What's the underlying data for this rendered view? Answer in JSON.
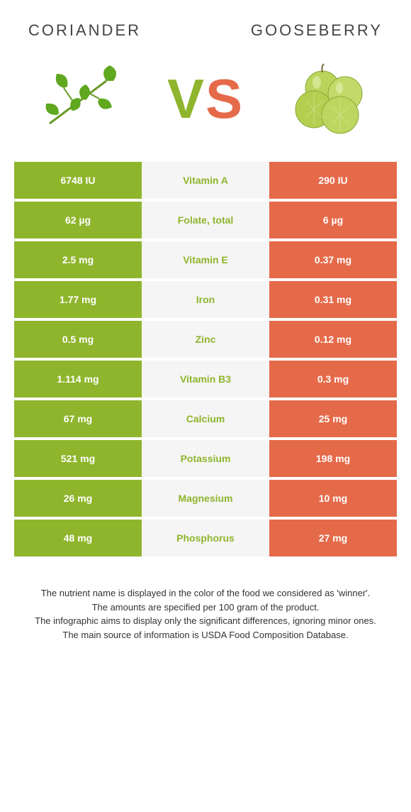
{
  "header": {
    "left_title": "CORIANDER",
    "right_title": "GOOSEBERRY"
  },
  "vs": {
    "v": "V",
    "s": "S"
  },
  "colors": {
    "left_bg": "#8fb52c",
    "right_bg": "#e56a4a",
    "mid_bg": "#f5f5f5",
    "left_text": "#ffffff",
    "right_text": "#ffffff",
    "winner_left": "#8fb52c",
    "winner_right": "#e56a4a"
  },
  "table": {
    "rows": [
      {
        "left": "6748 IU",
        "label": "Vitamin A",
        "right": "290 IU",
        "winner": "left"
      },
      {
        "left": "62 µg",
        "label": "Folate, total",
        "right": "6 µg",
        "winner": "left"
      },
      {
        "left": "2.5 mg",
        "label": "Vitamin E",
        "right": "0.37 mg",
        "winner": "left"
      },
      {
        "left": "1.77 mg",
        "label": "Iron",
        "right": "0.31 mg",
        "winner": "left"
      },
      {
        "left": "0.5 mg",
        "label": "Zinc",
        "right": "0.12 mg",
        "winner": "left"
      },
      {
        "left": "1.114 mg",
        "label": "Vitamin B3",
        "right": "0.3 mg",
        "winner": "left"
      },
      {
        "left": "67 mg",
        "label": "Calcium",
        "right": "25 mg",
        "winner": "left"
      },
      {
        "left": "521 mg",
        "label": "Potassium",
        "right": "198 mg",
        "winner": "left"
      },
      {
        "left": "26 mg",
        "label": "Magnesium",
        "right": "10 mg",
        "winner": "left"
      },
      {
        "left": "48 mg",
        "label": "Phosphorus",
        "right": "27 mg",
        "winner": "left"
      }
    ]
  },
  "footnote": {
    "l1": "The nutrient name is displayed in the color of the food we considered as 'winner'.",
    "l2": "The amounts are specified per 100 gram of the product.",
    "l3": "The infographic aims to display only the significant differences, ignoring minor ones.",
    "l4": "The main source of information is USDA Food Composition Database."
  },
  "icons": {
    "coriander": "coriander-icon",
    "gooseberry": "gooseberry-icon"
  }
}
